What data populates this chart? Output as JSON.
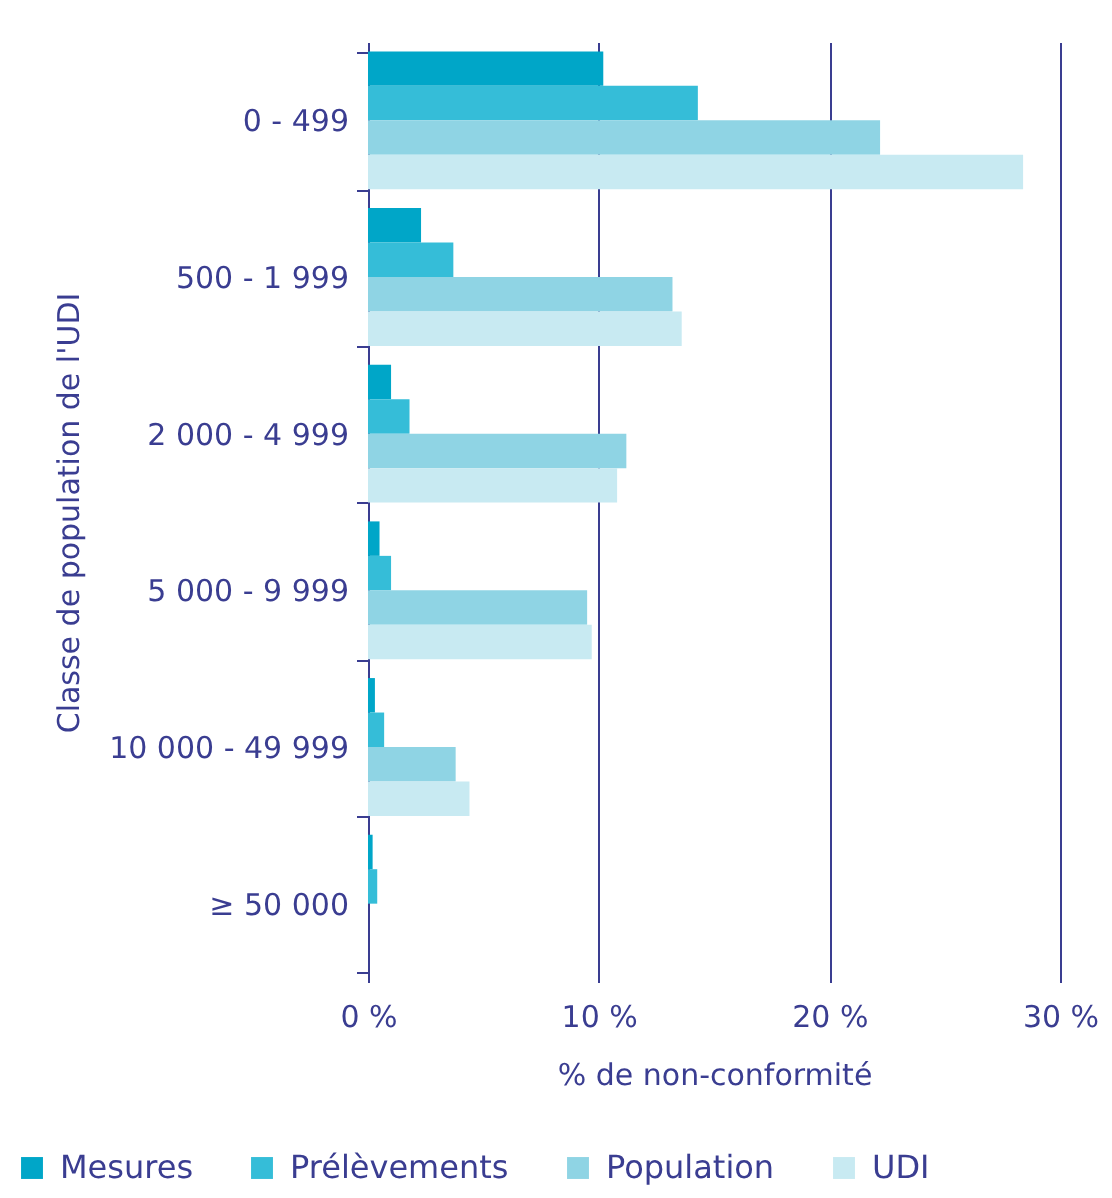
{
  "chart_data": {
    "type": "bar",
    "orientation": "horizontal",
    "xlabel": "% de non-conformité",
    "ylabel": "Classe de population de l'UDI",
    "categories": [
      "0 - 499",
      "500 - 1 999",
      "2 000 - 4 999",
      "5 000 - 9 999",
      "10 000 - 49 999",
      "≥ 50 000"
    ],
    "series": [
      {
        "name": "Mesures",
        "color": "#00a6c8",
        "values": [
          10.2,
          2.3,
          1.0,
          0.5,
          0.3,
          0.2
        ]
      },
      {
        "name": "Prélèvements",
        "color": "#35bdd8",
        "values": [
          14.3,
          3.7,
          1.8,
          1.0,
          0.7,
          0.4
        ]
      },
      {
        "name": "Population",
        "color": "#8fd4e4",
        "values": [
          22.2,
          13.2,
          11.2,
          9.5,
          3.8,
          0
        ]
      },
      {
        "name": "UDI",
        "color": "#c8eaf2",
        "values": [
          28.4,
          13.6,
          10.8,
          9.7,
          4.4,
          0
        ]
      }
    ],
    "xlim": [
      0,
      30
    ],
    "xticks": [
      {
        "value": 0,
        "label": "0 %"
      },
      {
        "value": 10,
        "label": "10 %"
      },
      {
        "value": 20,
        "label": "20 %"
      },
      {
        "value": 30,
        "label": "30 %"
      }
    ],
    "grid": "x",
    "legend": "bottom"
  }
}
